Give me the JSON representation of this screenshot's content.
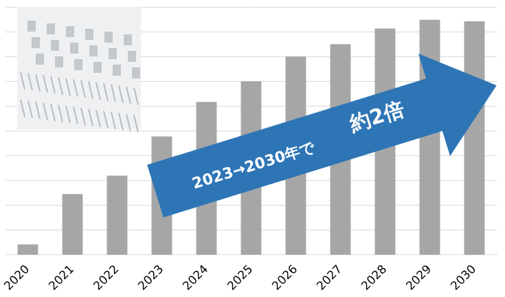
{
  "chart_data": {
    "type": "bar",
    "categories": [
      "2020",
      "2021",
      "2022",
      "2023",
      "2024",
      "2025",
      "2026",
      "2027",
      "2028",
      "2029",
      "2030"
    ],
    "values": [
      0.43,
      2.46,
      3.2,
      4.78,
      6.17,
      7.0,
      8.0,
      8.5,
      9.13,
      9.48,
      9.42
    ],
    "color": "#a6a6a6",
    "ylim": [
      0,
      10
    ],
    "yticks": [
      0,
      1,
      2,
      3,
      4,
      5,
      6,
      7,
      8,
      9,
      10
    ],
    "grid": true,
    "tick_labels": "x",
    "annotations": [
      "2023→2030年で",
      "約2倍"
    ]
  }
}
